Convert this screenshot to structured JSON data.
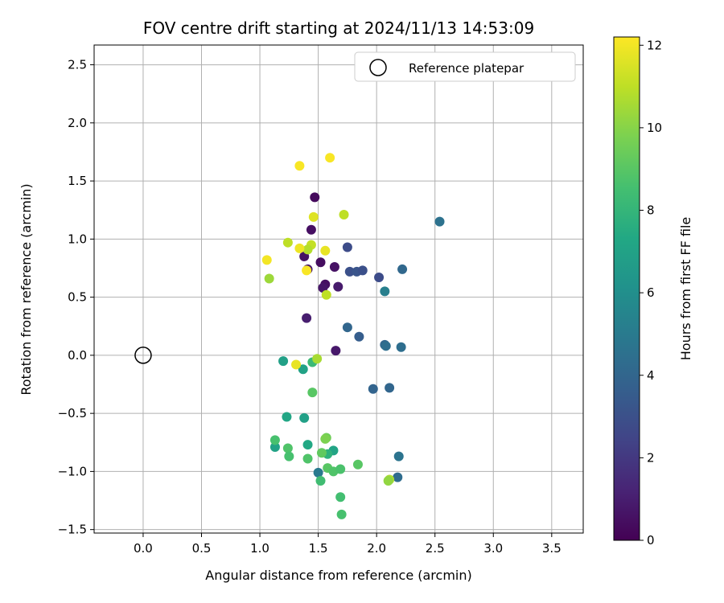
{
  "chart_data": {
    "type": "scatter",
    "title": "FOV centre drift starting at 2024/11/13 14:53:09",
    "xlabel": "Angular distance from reference (arcmin)",
    "ylabel": "Rotation from reference (arcmin)",
    "xlim": [
      -0.42,
      3.77
    ],
    "ylim": [
      -1.53,
      2.67
    ],
    "xticks": [
      0.0,
      0.5,
      1.0,
      1.5,
      2.0,
      2.5,
      3.0,
      3.5
    ],
    "xtick_labels": [
      "0.0",
      "0.5",
      "1.0",
      "1.5",
      "2.0",
      "2.5",
      "3.0",
      "3.5"
    ],
    "yticks": [
      -1.5,
      -1.0,
      -0.5,
      0.0,
      0.5,
      1.0,
      1.5,
      2.0,
      2.5
    ],
    "ytick_labels": [
      "−1.5",
      "−1.0",
      "−0.5",
      "0.0",
      "0.5",
      "1.0",
      "1.5",
      "2.0",
      "2.5"
    ],
    "grid": true,
    "legend": {
      "placement": "top-right",
      "entries": [
        "Reference platepar"
      ]
    },
    "reference_point": {
      "x": 0.0,
      "y": 0.0,
      "marker": "open-circle",
      "label": "Reference platepar"
    },
    "colorbar": {
      "label": "Hours from first FF file",
      "colormap": "viridis",
      "min": 0.0,
      "max": 12.2,
      "ticks": [
        0,
        2,
        4,
        6,
        8,
        10,
        12
      ],
      "tick_labels": [
        "0",
        "2",
        "4",
        "6",
        "8",
        "10",
        "12"
      ]
    },
    "series": [
      {
        "points": [
          {
            "x": 1.47,
            "y": 1.36,
            "c": 0.3
          },
          {
            "x": 1.44,
            "y": 1.08,
            "c": 0.5
          },
          {
            "x": 1.38,
            "y": 0.85,
            "c": 0.6
          },
          {
            "x": 1.52,
            "y": 0.8,
            "c": 0.4
          },
          {
            "x": 1.64,
            "y": 0.76,
            "c": 0.6
          },
          {
            "x": 1.41,
            "y": 0.74,
            "c": 0.8
          },
          {
            "x": 1.56,
            "y": 0.61,
            "c": 0.5
          },
          {
            "x": 1.54,
            "y": 0.58,
            "c": 0.7
          },
          {
            "x": 1.67,
            "y": 0.59,
            "c": 0.9
          },
          {
            "x": 1.4,
            "y": 0.32,
            "c": 1.0
          },
          {
            "x": 1.65,
            "y": 0.04,
            "c": 0.8
          },
          {
            "x": 1.75,
            "y": 0.93,
            "c": 2.8
          },
          {
            "x": 1.77,
            "y": 0.72,
            "c": 3.0
          },
          {
            "x": 1.83,
            "y": 0.72,
            "c": 3.2
          },
          {
            "x": 1.88,
            "y": 0.73,
            "c": 3.0
          },
          {
            "x": 2.02,
            "y": 0.67,
            "c": 2.8
          },
          {
            "x": 2.22,
            "y": 0.74,
            "c": 4.1
          },
          {
            "x": 2.07,
            "y": 0.55,
            "c": 5.2
          },
          {
            "x": 2.54,
            "y": 1.15,
            "c": 4.6
          },
          {
            "x": 1.75,
            "y": 0.24,
            "c": 4.0
          },
          {
            "x": 1.85,
            "y": 0.16,
            "c": 3.6
          },
          {
            "x": 2.07,
            "y": 0.09,
            "c": 4.0
          },
          {
            "x": 2.08,
            "y": 0.08,
            "c": 4.4
          },
          {
            "x": 2.21,
            "y": 0.07,
            "c": 4.4
          },
          {
            "x": 1.97,
            "y": -0.29,
            "c": 3.9
          },
          {
            "x": 2.11,
            "y": -0.28,
            "c": 4.0
          },
          {
            "x": 2.19,
            "y": -0.87,
            "c": 4.7
          },
          {
            "x": 2.18,
            "y": -1.05,
            "c": 4.3
          },
          {
            "x": 1.5,
            "y": -1.01,
            "c": 5.0
          },
          {
            "x": 1.2,
            "y": -0.05,
            "c": 6.9
          },
          {
            "x": 1.37,
            "y": -0.12,
            "c": 7.0
          },
          {
            "x": 1.45,
            "y": -0.06,
            "c": 8.2
          },
          {
            "x": 1.23,
            "y": -0.53,
            "c": 7.2
          },
          {
            "x": 1.38,
            "y": -0.54,
            "c": 6.9
          },
          {
            "x": 1.13,
            "y": -0.79,
            "c": 7.0
          },
          {
            "x": 1.41,
            "y": -0.77,
            "c": 7.3
          },
          {
            "x": 1.63,
            "y": -0.82,
            "c": 7.1
          },
          {
            "x": 1.58,
            "y": -0.85,
            "c": 7.8
          },
          {
            "x": 1.13,
            "y": -0.73,
            "c": 8.6
          },
          {
            "x": 1.24,
            "y": -0.8,
            "c": 8.8
          },
          {
            "x": 1.25,
            "y": -0.87,
            "c": 8.6
          },
          {
            "x": 1.41,
            "y": -0.89,
            "c": 8.8
          },
          {
            "x": 1.53,
            "y": -0.84,
            "c": 9.2
          },
          {
            "x": 1.57,
            "y": -0.71,
            "c": 9.5
          },
          {
            "x": 1.56,
            "y": -0.72,
            "c": 9.8
          },
          {
            "x": 1.58,
            "y": -0.97,
            "c": 9.0
          },
          {
            "x": 1.63,
            "y": -1.0,
            "c": 8.8
          },
          {
            "x": 1.69,
            "y": -0.98,
            "c": 8.7
          },
          {
            "x": 1.52,
            "y": -1.08,
            "c": 8.4
          },
          {
            "x": 1.69,
            "y": -1.22,
            "c": 8.5
          },
          {
            "x": 1.7,
            "y": -1.37,
            "c": 8.6
          },
          {
            "x": 1.84,
            "y": -0.94,
            "c": 9.0
          },
          {
            "x": 1.45,
            "y": -0.32,
            "c": 9.0
          },
          {
            "x": 2.11,
            "y": -1.07,
            "c": 10.7
          },
          {
            "x": 2.1,
            "y": -1.08,
            "c": 10.2
          },
          {
            "x": 1.49,
            "y": -0.03,
            "c": 10.6
          },
          {
            "x": 1.31,
            "y": -0.08,
            "c": 11.8
          },
          {
            "x": 1.08,
            "y": 0.66,
            "c": 10.4
          },
          {
            "x": 1.24,
            "y": 0.97,
            "c": 11.0
          },
          {
            "x": 1.44,
            "y": 0.95,
            "c": 11.1
          },
          {
            "x": 1.41,
            "y": 0.91,
            "c": 10.8
          },
          {
            "x": 1.34,
            "y": 0.92,
            "c": 11.9
          },
          {
            "x": 1.56,
            "y": 0.9,
            "c": 11.8
          },
          {
            "x": 1.06,
            "y": 0.82,
            "c": 12.0
          },
          {
            "x": 1.4,
            "y": 0.73,
            "c": 12.1
          },
          {
            "x": 1.57,
            "y": 0.52,
            "c": 11.0
          },
          {
            "x": 1.46,
            "y": 1.19,
            "c": 11.6
          },
          {
            "x": 1.72,
            "y": 1.21,
            "c": 11.0
          },
          {
            "x": 1.34,
            "y": 1.63,
            "c": 12.1
          },
          {
            "x": 1.6,
            "y": 1.7,
            "c": 12.1
          }
        ]
      }
    ]
  }
}
